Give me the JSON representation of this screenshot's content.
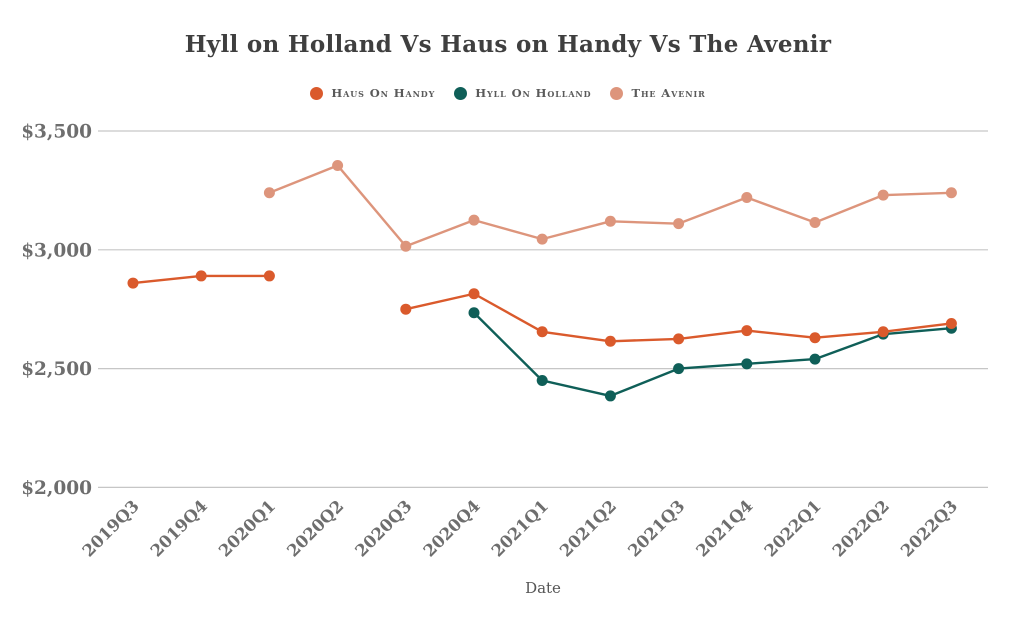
{
  "title": {
    "text": "Hyll on Holland Vs Haus on Handy Vs The Avenir",
    "color": "#3f3f3f"
  },
  "legend": {
    "items": [
      {
        "label": "Haus On Handy",
        "color": "#DA5A2C"
      },
      {
        "label": "Hyll On Holland",
        "color": "#0F5F58"
      },
      {
        "label": "The Avenir",
        "color": "#DD957C"
      }
    ],
    "text_color": "#5a5a5a"
  },
  "axes": {
    "grid_color": "#c6c6c6",
    "tick_color": "#6e6e6e",
    "xlabel_color": "#555555",
    "grid": "on",
    "legend_position": "top-center"
  },
  "chart_data": {
    "type": "line",
    "title": "Hyll on Holland Vs Haus on Handy Vs The Avenir",
    "xlabel": "Date",
    "ylabel": "",
    "categories": [
      "2019Q3",
      "2019Q4",
      "2020Q1",
      "2020Q2",
      "2020Q3",
      "2020Q4",
      "2021Q1",
      "2021Q2",
      "2021Q3",
      "2021Q4",
      "2022Q1",
      "2022Q2",
      "2022Q3"
    ],
    "series": [
      {
        "name": "Haus On Handy",
        "color": "#DA5A2C",
        "values": [
          2860,
          2890,
          2890,
          null,
          2750,
          2815,
          2655,
          2615,
          2625,
          2660,
          2630,
          2655,
          2690
        ]
      },
      {
        "name": "Hyll On Holland",
        "color": "#0F5F58",
        "values": [
          null,
          null,
          null,
          null,
          null,
          2735,
          2450,
          2385,
          2500,
          2520,
          2540,
          2645,
          2670
        ]
      },
      {
        "name": "The Avenir",
        "color": "#DD957C",
        "values": [
          null,
          null,
          3240,
          3355,
          3015,
          3125,
          3045,
          3120,
          3110,
          3220,
          3115,
          3230,
          3240
        ]
      }
    ],
    "y_ticks": [
      {
        "label": "$3,500",
        "value": 3500
      },
      {
        "label": "$3,000",
        "value": 3000
      },
      {
        "label": "$2,500",
        "value": 2500
      },
      {
        "label": "$2,000",
        "value": 2000
      }
    ],
    "ylim": [
      2000,
      3500
    ]
  }
}
